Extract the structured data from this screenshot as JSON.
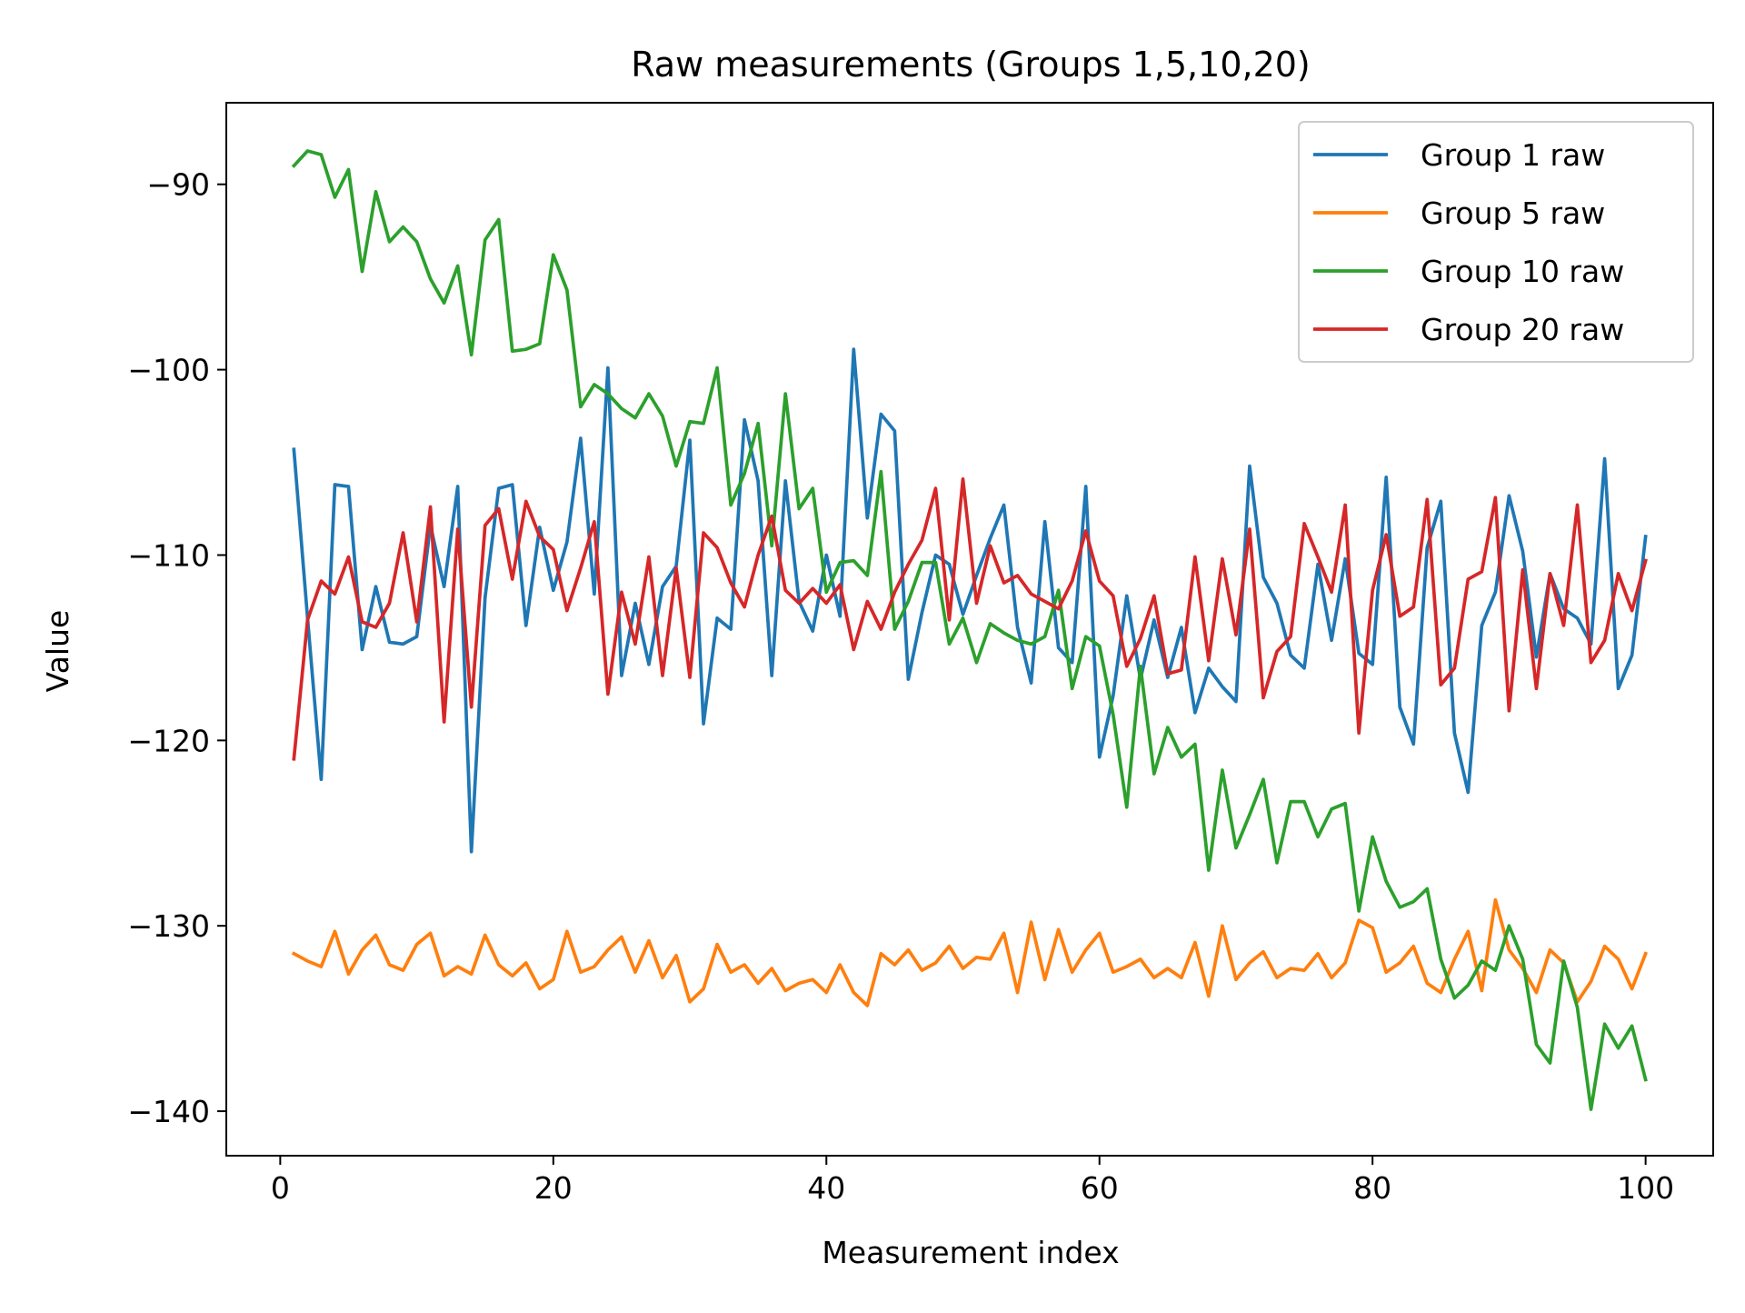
{
  "chart_data": {
    "type": "line",
    "title": "Raw measurements (Groups 1,5,10,20)",
    "xlabel": "Measurement index",
    "ylabel": "Value",
    "xlim": [
      -3.95,
      104.95
    ],
    "ylim": [
      -142.4,
      -85.6
    ],
    "xticks": [
      0,
      20,
      40,
      60,
      80,
      100
    ],
    "yticks": [
      -140,
      -130,
      -120,
      -110,
      -100,
      -90
    ],
    "xtick_labels": [
      "0",
      "20",
      "40",
      "60",
      "80",
      "100"
    ],
    "ytick_labels": [
      "−140",
      "−130",
      "−120",
      "−110",
      "−100",
      "−90"
    ],
    "grid": false,
    "legend_position": "top-right",
    "series": [
      {
        "name": "Group 1 raw",
        "color": "#1f77b4",
        "values": [
          -104.3,
          -113.4,
          -122.1,
          -106.2,
          -106.3,
          -115.1,
          -111.7,
          -114.7,
          -114.8,
          -114.4,
          -108.4,
          -111.7,
          -106.3,
          -126.0,
          -112.3,
          -106.4,
          -106.2,
          -113.8,
          -108.5,
          -111.9,
          -109.3,
          -103.7,
          -112.1,
          -99.9,
          -116.5,
          -112.6,
          -115.9,
          -111.7,
          -110.6,
          -103.8,
          -119.1,
          -113.4,
          -114.0,
          -102.7,
          -106.0,
          -116.5,
          -106.0,
          -112.5,
          -114.1,
          -110.0,
          -113.3,
          -98.9,
          -108.0,
          -102.4,
          -103.3,
          -116.7,
          -113.1,
          -110.0,
          -110.5,
          -113.2,
          -111.1,
          -109.1,
          -107.3,
          -113.9,
          -116.9,
          -108.2,
          -115.0,
          -115.8,
          -106.3,
          -120.9,
          -117.6,
          -112.2,
          -116.7,
          -113.5,
          -116.6,
          -113.9,
          -118.5,
          -116.1,
          -117.1,
          -117.9,
          -105.2,
          -111.2,
          -112.6,
          -115.4,
          -116.1,
          -110.5,
          -114.6,
          -110.2,
          -115.3,
          -115.9,
          -105.8,
          -118.2,
          -120.2,
          -109.6,
          -107.1,
          -119.6,
          -122.8,
          -113.8,
          -112.0,
          -106.8,
          -109.8,
          -115.5,
          -111.0,
          -112.9,
          -113.4,
          -114.8,
          -104.8,
          -117.2,
          -115.4,
          -109.0
        ]
      },
      {
        "name": "Group 5 raw",
        "color": "#ff7f0e",
        "values": [
          -131.5,
          -131.9,
          -132.2,
          -130.3,
          -132.6,
          -131.3,
          -130.5,
          -132.1,
          -132.4,
          -131.0,
          -130.4,
          -132.7,
          -132.2,
          -132.6,
          -130.5,
          -132.1,
          -132.7,
          -132.0,
          -133.4,
          -132.9,
          -130.3,
          -132.5,
          -132.2,
          -131.3,
          -130.6,
          -132.5,
          -130.8,
          -132.8,
          -131.6,
          -134.1,
          -133.4,
          -131.0,
          -132.5,
          -132.1,
          -133.1,
          -132.3,
          -133.5,
          -133.1,
          -132.9,
          -133.6,
          -132.1,
          -133.6,
          -134.3,
          -131.5,
          -132.1,
          -131.3,
          -132.4,
          -132.0,
          -131.1,
          -132.3,
          -131.7,
          -131.8,
          -130.4,
          -133.6,
          -129.8,
          -132.9,
          -130.2,
          -132.5,
          -131.3,
          -130.4,
          -132.5,
          -132.2,
          -131.8,
          -132.8,
          -132.3,
          -132.8,
          -130.9,
          -133.8,
          -130.0,
          -132.9,
          -132.0,
          -131.4,
          -132.8,
          -132.3,
          -132.4,
          -131.5,
          -132.8,
          -132.0,
          -129.7,
          -130.1,
          -132.5,
          -132.0,
          -131.1,
          -133.1,
          -133.6,
          -131.8,
          -130.3,
          -133.5,
          -128.6,
          -131.3,
          -132.3,
          -133.6,
          -131.3,
          -132.0,
          -134.1,
          -133.0,
          -131.1,
          -131.8,
          -133.4,
          -131.5
        ]
      },
      {
        "name": "Group 10 raw",
        "color": "#2ca02c",
        "values": [
          -89.0,
          -88.2,
          -88.4,
          -90.7,
          -89.2,
          -94.7,
          -90.4,
          -93.1,
          -92.3,
          -93.1,
          -95.1,
          -96.4,
          -94.4,
          -99.2,
          -93.0,
          -91.9,
          -99.0,
          -98.9,
          -98.6,
          -93.8,
          -95.7,
          -102.0,
          -100.8,
          -101.3,
          -102.1,
          -102.6,
          -101.3,
          -102.5,
          -105.2,
          -102.8,
          -102.9,
          -99.9,
          -107.3,
          -105.6,
          -102.9,
          -109.5,
          -101.3,
          -107.5,
          -106.4,
          -112.0,
          -110.4,
          -110.3,
          -111.1,
          -105.5,
          -114.0,
          -112.5,
          -110.4,
          -110.4,
          -114.8,
          -113.4,
          -115.8,
          -113.7,
          -114.2,
          -114.6,
          -114.8,
          -114.4,
          -111.9,
          -117.2,
          -114.4,
          -114.9,
          -118.6,
          -123.6,
          -116.0,
          -121.8,
          -119.3,
          -120.9,
          -120.2,
          -127.0,
          -121.6,
          -125.8,
          -124.0,
          -122.1,
          -126.6,
          -123.3,
          -123.3,
          -125.2,
          -123.7,
          -123.4,
          -129.2,
          -125.2,
          -127.6,
          -129.0,
          -128.7,
          -128.0,
          -131.8,
          -133.9,
          -133.2,
          -131.9,
          -132.4,
          -130.0,
          -131.8,
          -136.4,
          -137.4,
          -131.9,
          -134.4,
          -139.9,
          -135.3,
          -136.6,
          -135.4,
          -138.3
        ]
      },
      {
        "name": "Group 20 raw",
        "color": "#d62728",
        "values": [
          -121.0,
          -113.5,
          -111.4,
          -112.1,
          -110.1,
          -113.6,
          -113.9,
          -112.6,
          -108.8,
          -113.6,
          -107.4,
          -119.0,
          -108.6,
          -118.2,
          -108.4,
          -107.5,
          -111.3,
          -107.1,
          -109.0,
          -109.7,
          -113.0,
          -110.7,
          -108.2,
          -117.5,
          -112.0,
          -114.8,
          -110.1,
          -116.5,
          -110.7,
          -116.6,
          -108.8,
          -109.6,
          -111.5,
          -112.8,
          -110.0,
          -107.9,
          -111.9,
          -112.6,
          -111.8,
          -112.6,
          -111.6,
          -115.1,
          -112.5,
          -114.0,
          -112.0,
          -110.5,
          -109.2,
          -106.4,
          -113.5,
          -105.9,
          -112.6,
          -109.5,
          -111.5,
          -111.1,
          -112.1,
          -112.5,
          -112.9,
          -111.4,
          -108.7,
          -111.4,
          -112.2,
          -116.0,
          -114.5,
          -112.2,
          -116.4,
          -116.2,
          -110.1,
          -115.7,
          -110.2,
          -114.3,
          -108.6,
          -117.7,
          -115.2,
          -114.4,
          -108.3,
          -110.1,
          -112.0,
          -107.3,
          -119.6,
          -111.9,
          -108.9,
          -113.3,
          -112.8,
          -107.0,
          -117.0,
          -116.1,
          -111.3,
          -110.9,
          -106.9,
          -118.4,
          -110.8,
          -117.2,
          -111.0,
          -113.8,
          -107.3,
          -115.8,
          -114.6,
          -111.0,
          -113.0,
          -110.3
        ]
      }
    ]
  }
}
